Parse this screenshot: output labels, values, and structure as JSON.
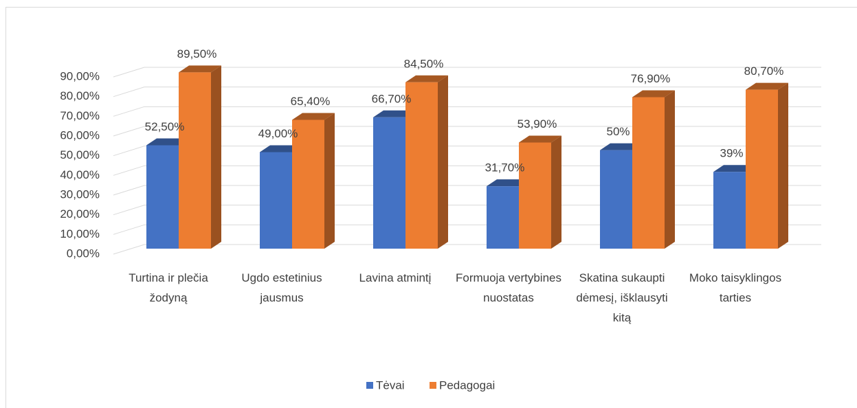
{
  "chart_data": {
    "type": "bar3d",
    "categories": [
      "Turtina ir plečia žodyną",
      "Ugdo estetinius jausmus",
      "Lavina atmintį",
      "Formuoja vertybines nuostatas",
      "Skatina sukaupti dėmesį, išklausyti kitą",
      "Moko taisyklingos tarties"
    ],
    "series": [
      {
        "name": "Tėvai",
        "color": "#4472c4",
        "values": [
          52.5,
          49,
          66.7,
          31.7,
          50,
          39
        ],
        "value_labels": [
          "52,50%",
          "49,00%",
          "66,70%",
          "31,70%",
          "50%",
          "39%"
        ]
      },
      {
        "name": "Pedagogai",
        "color": "#ed7d31",
        "values": [
          89.5,
          65.4,
          84.5,
          53.9,
          76.9,
          80.7
        ],
        "value_labels": [
          "89,50%",
          "65,40%",
          "84,50%",
          "53,90%",
          "76,90%",
          "80,70%"
        ]
      }
    ],
    "ylim": [
      0,
      90
    ],
    "yticks": [
      {
        "value": 0,
        "label": "0,00%"
      },
      {
        "value": 10,
        "label": "10,00%"
      },
      {
        "value": 20,
        "label": "20,00%"
      },
      {
        "value": 30,
        "label": "30,00%"
      },
      {
        "value": 40,
        "label": "40,00%"
      },
      {
        "value": 50,
        "label": "50,00%"
      },
      {
        "value": 60,
        "label": "60,00%"
      },
      {
        "value": 70,
        "label": "70,00%"
      },
      {
        "value": 80,
        "label": "80,00%"
      },
      {
        "value": 90,
        "label": "90,00%"
      }
    ],
    "grid": true,
    "legend": "bottom"
  }
}
